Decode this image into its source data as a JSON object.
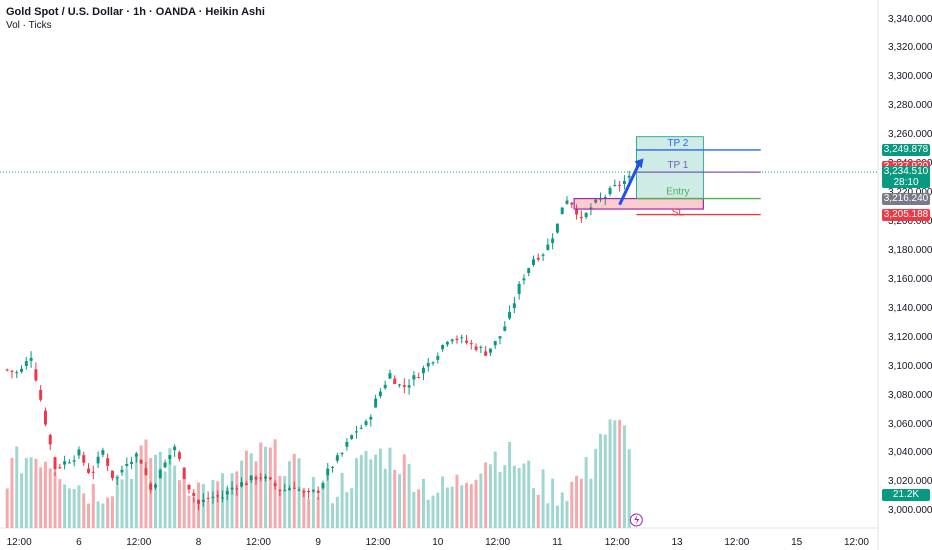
{
  "header": {
    "title": "Gold Spot / U.S. Dollar · 1h · OANDA · Heikin Ashi",
    "volume_label": "Vol · Ticks"
  },
  "price_tags": [
    {
      "value": "3,249.878",
      "color": "#089981",
      "price": 3249.878
    },
    {
      "value": "3,237.920",
      "color": "#f23645",
      "price": 3237.92
    },
    {
      "value": "3,234.510",
      "sub": "28:10",
      "color": "#089981",
      "price": 3234.51
    },
    {
      "value": "3,216.240",
      "color": "#787b86",
      "price": 3216.24
    },
    {
      "value": "3,205.188",
      "color": "#f23645",
      "price": 3205.188
    }
  ],
  "volume_tag": {
    "value": "21.2K",
    "color": "#089981"
  },
  "zones": [
    {
      "label": "TP 2",
      "price": 3249.878,
      "color": "#2962ff"
    },
    {
      "label": "TP 1",
      "price": 3234.51,
      "color": "#7e57c2"
    },
    {
      "label": "Entry",
      "price": 3216.24,
      "color": "#4caf50"
    },
    {
      "label": "SL",
      "price": 3205.188,
      "color": "#f23645"
    }
  ],
  "chart_data": {
    "type": "candlestick",
    "title": "Gold Spot / U.S. Dollar · 1h · OANDA · Heikin Ashi",
    "y_ticks": [
      "3,340.000",
      "3,320.000",
      "3,300.000",
      "3,280.000",
      "3,260.000",
      "3,240.000",
      "3,220.000",
      "3,200.000",
      "3,180.000",
      "3,160.000",
      "3,140.000",
      "3,120.000",
      "3,100.000",
      "3,080.000",
      "3,060.000",
      "3,040.000",
      "3,020.000",
      "3,000.000"
    ],
    "y_values": [
      3340,
      3320,
      3300,
      3280,
      3260,
      3240,
      3220,
      3200,
      3180,
      3160,
      3140,
      3120,
      3100,
      3080,
      3060,
      3040,
      3020,
      3000
    ],
    "ylim": [
      2994,
      3348
    ],
    "x_ticks": [
      {
        "label": "12:00",
        "pos": 0.5
      },
      {
        "label": "6",
        "pos": 3
      },
      {
        "label": "12:00",
        "pos": 5.5
      },
      {
        "label": "8",
        "pos": 8
      },
      {
        "label": "12:00",
        "pos": 10.5
      },
      {
        "label": "9",
        "pos": 13
      },
      {
        "label": "12:00",
        "pos": 15.5
      },
      {
        "label": "10",
        "pos": 18
      },
      {
        "label": "12:00",
        "pos": 20.5
      },
      {
        "label": "11",
        "pos": 23
      },
      {
        "label": "12:00",
        "pos": 25.5
      },
      {
        "label": "13",
        "pos": 28
      },
      {
        "label": "12:00",
        "pos": 30.5
      },
      {
        "label": "15",
        "pos": 33
      },
      {
        "label": "12:00",
        "pos": 35.5
      }
    ],
    "xlim": [
      -0.3,
      36.4
    ],
    "anchors": [
      [
        0,
        3098
      ],
      [
        0.5,
        3095
      ],
      [
        1,
        3108
      ],
      [
        1.5,
        3070
      ],
      [
        2,
        3030
      ],
      [
        2.5,
        3035
      ],
      [
        3,
        3040
      ],
      [
        3.5,
        3025
      ],
      [
        4,
        3042
      ],
      [
        4.5,
        3020
      ],
      [
        5,
        3035
      ],
      [
        5.5,
        3040
      ],
      [
        6,
        3015
      ],
      [
        6.5,
        3030
      ],
      [
        7,
        3045
      ],
      [
        7.5,
        3020
      ],
      [
        8,
        3005
      ],
      [
        8.5,
        3010
      ],
      [
        9,
        3010
      ],
      [
        9.5,
        3018
      ],
      [
        10,
        3020
      ],
      [
        10.5,
        3025
      ],
      [
        11,
        3020
      ],
      [
        11.5,
        3014
      ],
      [
        12,
        3018
      ],
      [
        12.5,
        3010
      ],
      [
        13,
        3015
      ],
      [
        13.5,
        3030
      ],
      [
        14,
        3040
      ],
      [
        14.5,
        3055
      ],
      [
        15,
        3060
      ],
      [
        15.5,
        3080
      ],
      [
        16,
        3095
      ],
      [
        16.5,
        3085
      ],
      [
        17,
        3092
      ],
      [
        17.5,
        3100
      ],
      [
        18,
        3110
      ],
      [
        18.5,
        3122
      ],
      [
        19,
        3118
      ],
      [
        19.5,
        3115
      ],
      [
        20,
        3110
      ],
      [
        20.5,
        3118
      ],
      [
        21,
        3135
      ],
      [
        21.5,
        3160
      ],
      [
        22,
        3175
      ],
      [
        22.5,
        3180
      ],
      [
        23,
        3198
      ],
      [
        23.3,
        3218
      ],
      [
        23.7,
        3212
      ],
      [
        24,
        3200
      ],
      [
        24.4,
        3210
      ],
      [
        25,
        3218
      ],
      [
        25.5,
        3225
      ],
      [
        26,
        3230
      ]
    ]
  }
}
